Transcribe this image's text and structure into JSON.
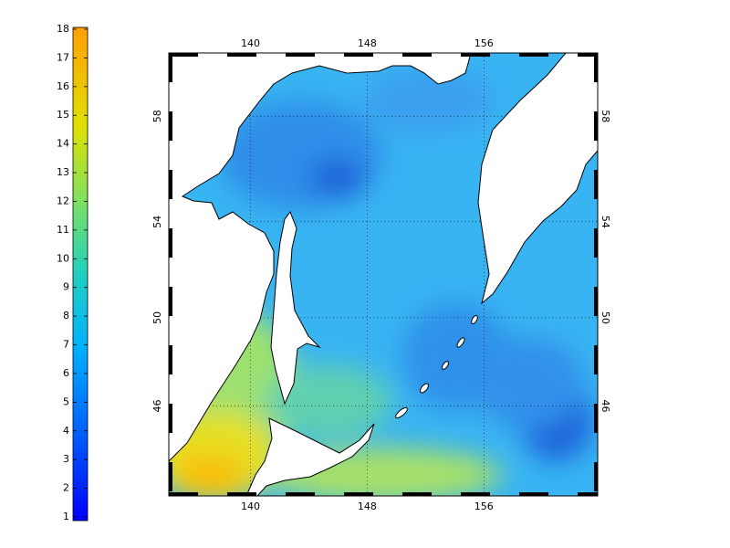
{
  "map": {
    "colorbar": {
      "lim": [
        1,
        18
      ],
      "ticks": [
        1,
        2,
        3,
        4,
        5,
        6,
        7,
        8,
        9,
        10,
        11,
        12,
        13,
        14,
        15,
        16,
        17,
        18
      ]
    },
    "lon_ticks": [
      140,
      148,
      156
    ],
    "lat_ticks": [
      46,
      50,
      54,
      58
    ],
    "lon_range": [
      134.4,
      163.8
    ],
    "lat_range": [
      41.6,
      60.2
    ]
  }
}
